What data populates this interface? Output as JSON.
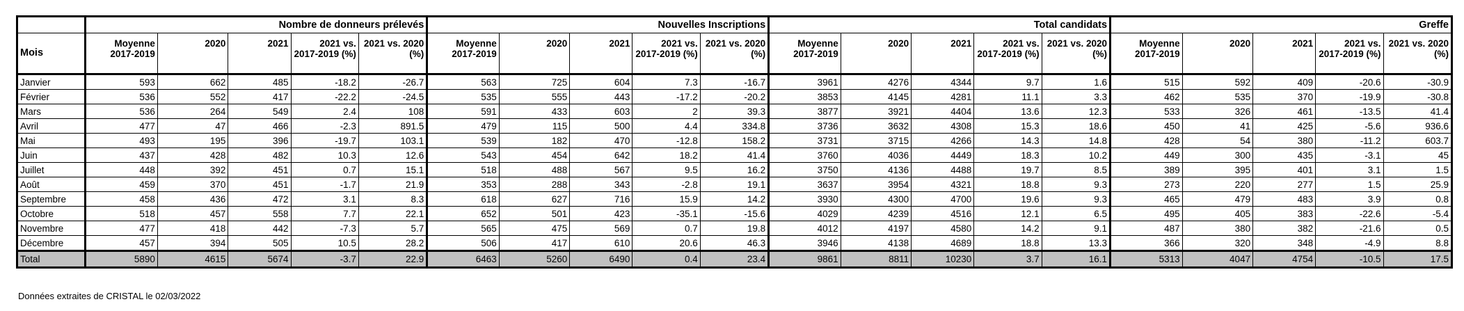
{
  "table": {
    "month_header": "Mois",
    "groups": [
      "Nombre de donneurs prélevés",
      "Nouvelles Inscriptions",
      "Total candidats",
      "Greffe"
    ],
    "subheaders": [
      "Moyenne 2017-2019",
      "2020",
      "2021",
      "2021 vs. 2017-2019 (%)",
      "2021 vs. 2020 (%)"
    ],
    "rows": [
      {
        "month": "Janvier",
        "values": [
          "593",
          "662",
          "485",
          "-18.2",
          "-26.7",
          "563",
          "725",
          "604",
          "7.3",
          "-16.7",
          "3961",
          "4276",
          "4344",
          "9.7",
          "1.6",
          "515",
          "592",
          "409",
          "-20.6",
          "-30.9"
        ]
      },
      {
        "month": "Février",
        "values": [
          "536",
          "552",
          "417",
          "-22.2",
          "-24.5",
          "535",
          "555",
          "443",
          "-17.2",
          "-20.2",
          "3853",
          "4145",
          "4281",
          "11.1",
          "3.3",
          "462",
          "535",
          "370",
          "-19.9",
          "-30.8"
        ]
      },
      {
        "month": "Mars",
        "values": [
          "536",
          "264",
          "549",
          "2.4",
          "108",
          "591",
          "433",
          "603",
          "2",
          "39.3",
          "3877",
          "3921",
          "4404",
          "13.6",
          "12.3",
          "533",
          "326",
          "461",
          "-13.5",
          "41.4"
        ]
      },
      {
        "month": "Avril",
        "values": [
          "477",
          "47",
          "466",
          "-2.3",
          "891.5",
          "479",
          "115",
          "500",
          "4.4",
          "334.8",
          "3736",
          "3632",
          "4308",
          "15.3",
          "18.6",
          "450",
          "41",
          "425",
          "-5.6",
          "936.6"
        ]
      },
      {
        "month": "Mai",
        "values": [
          "493",
          "195",
          "396",
          "-19.7",
          "103.1",
          "539",
          "182",
          "470",
          "-12.8",
          "158.2",
          "3731",
          "3715",
          "4266",
          "14.3",
          "14.8",
          "428",
          "54",
          "380",
          "-11.2",
          "603.7"
        ]
      },
      {
        "month": "Juin",
        "values": [
          "437",
          "428",
          "482",
          "10.3",
          "12.6",
          "543",
          "454",
          "642",
          "18.2",
          "41.4",
          "3760",
          "4036",
          "4449",
          "18.3",
          "10.2",
          "449",
          "300",
          "435",
          "-3.1",
          "45"
        ]
      },
      {
        "month": "Juillet",
        "values": [
          "448",
          "392",
          "451",
          "0.7",
          "15.1",
          "518",
          "488",
          "567",
          "9.5",
          "16.2",
          "3750",
          "4136",
          "4488",
          "19.7",
          "8.5",
          "389",
          "395",
          "401",
          "3.1",
          "1.5"
        ]
      },
      {
        "month": "Août",
        "values": [
          "459",
          "370",
          "451",
          "-1.7",
          "21.9",
          "353",
          "288",
          "343",
          "-2.8",
          "19.1",
          "3637",
          "3954",
          "4321",
          "18.8",
          "9.3",
          "273",
          "220",
          "277",
          "1.5",
          "25.9"
        ]
      },
      {
        "month": "Septembre",
        "values": [
          "458",
          "436",
          "472",
          "3.1",
          "8.3",
          "618",
          "627",
          "716",
          "15.9",
          "14.2",
          "3930",
          "4300",
          "4700",
          "19.6",
          "9.3",
          "465",
          "479",
          "483",
          "3.9",
          "0.8"
        ]
      },
      {
        "month": "Octobre",
        "values": [
          "518",
          "457",
          "558",
          "7.7",
          "22.1",
          "652",
          "501",
          "423",
          "-35.1",
          "-15.6",
          "4029",
          "4239",
          "4516",
          "12.1",
          "6.5",
          "495",
          "405",
          "383",
          "-22.6",
          "-5.4"
        ]
      },
      {
        "month": "Novembre",
        "values": [
          "477",
          "418",
          "442",
          "-7.3",
          "5.7",
          "565",
          "475",
          "569",
          "0.7",
          "19.8",
          "4012",
          "4197",
          "4580",
          "14.2",
          "9.1",
          "487",
          "380",
          "382",
          "-21.6",
          "0.5"
        ]
      },
      {
        "month": "Décembre",
        "values": [
          "457",
          "394",
          "505",
          "10.5",
          "28.2",
          "506",
          "417",
          "610",
          "20.6",
          "46.3",
          "3946",
          "4138",
          "4689",
          "18.8",
          "13.3",
          "366",
          "320",
          "348",
          "-4.9",
          "8.8"
        ]
      }
    ],
    "total": {
      "month": "Total",
      "values": [
        "5890",
        "4615",
        "5674",
        "-3.7",
        "22.9",
        "6463",
        "5260",
        "6490",
        "0.4",
        "23.4",
        "9861",
        "8811",
        "10230",
        "3.7",
        "16.1",
        "5313",
        "4047",
        "4754",
        "-10.5",
        "17.5"
      ]
    }
  },
  "footer_note": "Données extraites de CRISTAL le 02/03/2022"
}
